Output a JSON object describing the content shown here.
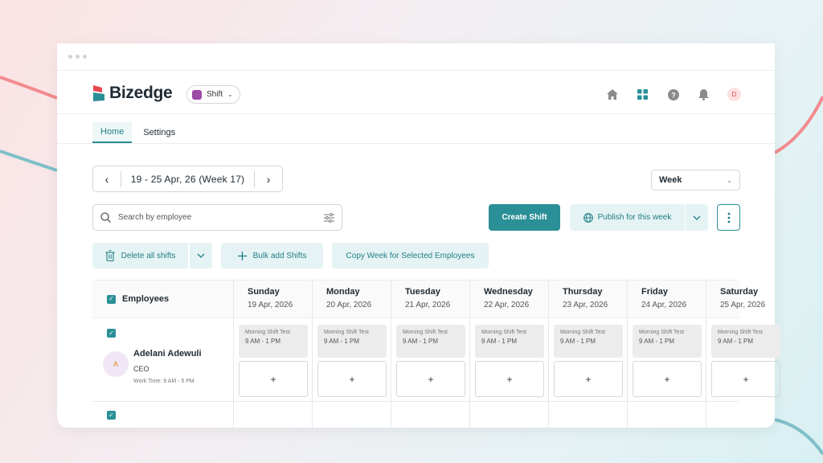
{
  "app": {
    "brand": "Bizedge",
    "switcher_label": "Shift",
    "user_initial": "D"
  },
  "tabs": [
    {
      "label": "Home",
      "active": true
    },
    {
      "label": "Settings",
      "active": false
    }
  ],
  "toolbar": {
    "date_range": "19 - 25 Apr, 26 (Week 17)",
    "view_select": "Week",
    "search_placeholder": "Search by employee",
    "create_label": "Create Shift",
    "publish_label": "Publish for this week",
    "delete_label": "Delete all shifts",
    "bulk_label": "Bulk add Shifts",
    "copy_label": "Copy Week for Selected Employees"
  },
  "grid": {
    "employees_header": "Employees",
    "days": [
      {
        "name": "Sunday",
        "date": "19 Apr, 2026"
      },
      {
        "name": "Monday",
        "date": "20 Apr, 2026"
      },
      {
        "name": "Tuesday",
        "date": "21 Apr, 2026"
      },
      {
        "name": "Wednesday",
        "date": "22 Apr, 2026"
      },
      {
        "name": "Thursday",
        "date": "23 Apr, 2026"
      },
      {
        "name": "Friday",
        "date": "24 Apr, 2026"
      },
      {
        "name": "Saturday",
        "date": "25 Apr, 2026"
      }
    ],
    "employee": {
      "initial": "A",
      "name": "Adelani Adewuli",
      "role": "CEO",
      "work_time": "Work Time: 9 AM - 5 PM"
    },
    "shift": {
      "name": "Morning Shift Test",
      "time": "9 AM - 1 PM"
    },
    "add_symbol": "+"
  },
  "colors": {
    "accent": "#2a8f96",
    "accent_light": "#e5f3f4"
  },
  "icons": [
    "home-icon",
    "apps-grid-icon",
    "help-icon",
    "bell-icon",
    "search-icon",
    "filter-icon",
    "globe-icon",
    "trash-icon",
    "plus-icon"
  ]
}
